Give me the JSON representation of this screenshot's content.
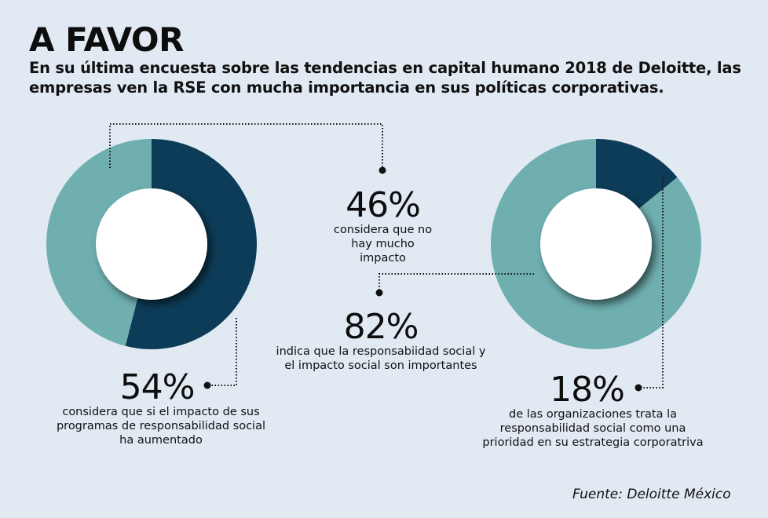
{
  "header": {
    "title": "A FAVOR",
    "subtitle": "En su última encuesta sobre las tendencias en capital humano 2018 de Deloitte, las empresas ven la RSE con mucha importancia en sus políticas corporativas."
  },
  "stats": [
    {
      "pct": "46%",
      "desc": "considera que no hay mucho impacto"
    },
    {
      "pct": "82%",
      "desc": "indica que la responsabiidad social y el impacto social son importantes"
    },
    {
      "pct": "54%",
      "desc": "considera que si el impacto de sus programas de responsabilidad social ha aumentado"
    },
    {
      "pct": "18%",
      "desc": "de las organizaciones trata la responsabilidad social como una prioridad en su estrategia corporatriva"
    }
  ],
  "source": "Fuente: Deloitte México",
  "colors": {
    "background": "#e1e9f2",
    "dark_segment": "#0c3c58",
    "light_segment": "#6fafb0",
    "hole": "#ffffff"
  },
  "chart_data": [
    {
      "type": "pie",
      "title": "",
      "categories": [
        "considera que si el impacto ha aumentado",
        "considera que no hay mucho impacto"
      ],
      "values": [
        54,
        46
      ],
      "colors": [
        "#0c3c58",
        "#6fafb0"
      ],
      "labels": [
        "54%",
        "46%"
      ]
    },
    {
      "type": "pie",
      "title": "",
      "categories": [
        "trata la responsabilidad social como prioridad",
        "indica que la responsabilidad social y el impacto social son importantes"
      ],
      "values": [
        18,
        82
      ],
      "colors": [
        "#0c3c58",
        "#6fafb0"
      ],
      "labels": [
        "18%",
        "82%"
      ]
    }
  ]
}
